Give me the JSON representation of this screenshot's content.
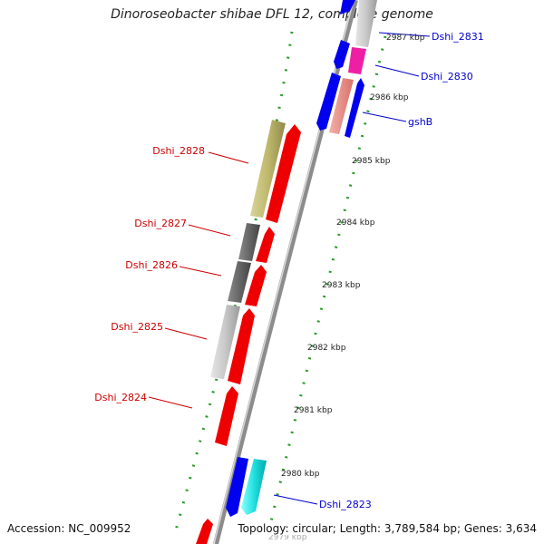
{
  "title": "Dinoroseobacter shibae DFL 12, complete genome",
  "footer": {
    "accession": "Accession: NC_009952",
    "summary": "Topology: circular; Length: 3,789,584 bp; Genes: 3,634"
  },
  "colors": {
    "forward_label": "#0000cc",
    "reverse_label": "#cc0000",
    "ruler_ticks": "#2a9a2a",
    "backbone": "#8c8c8c"
  },
  "scale": {
    "unit": "kbp",
    "ticks": [
      "2979 kbp",
      "2980 kbp",
      "2981 kbp",
      "2982 kbp",
      "2983 kbp",
      "2984 kbp",
      "2985 kbp",
      "2986 kbp",
      "2987 kbp"
    ]
  },
  "genes": [
    {
      "name": "Dshi_2831",
      "strand": "forward",
      "color": "blue"
    },
    {
      "name": "Dshi_2830",
      "strand": "forward",
      "color": "magenta"
    },
    {
      "name": "gshB",
      "strand": "forward",
      "color": "blue / salmon"
    },
    {
      "name": "Dshi_2828",
      "strand": "reverse",
      "color": "red / khaki"
    },
    {
      "name": "Dshi_2827",
      "strand": "reverse",
      "color": "red / dark grey"
    },
    {
      "name": "Dshi_2826",
      "strand": "reverse",
      "color": "red / dark grey"
    },
    {
      "name": "Dshi_2825",
      "strand": "reverse",
      "color": "red / light grey"
    },
    {
      "name": "Dshi_2824",
      "strand": "reverse",
      "color": "red"
    },
    {
      "name": "Dshi_2823",
      "strand": "forward",
      "color": "blue / cyan"
    }
  ]
}
